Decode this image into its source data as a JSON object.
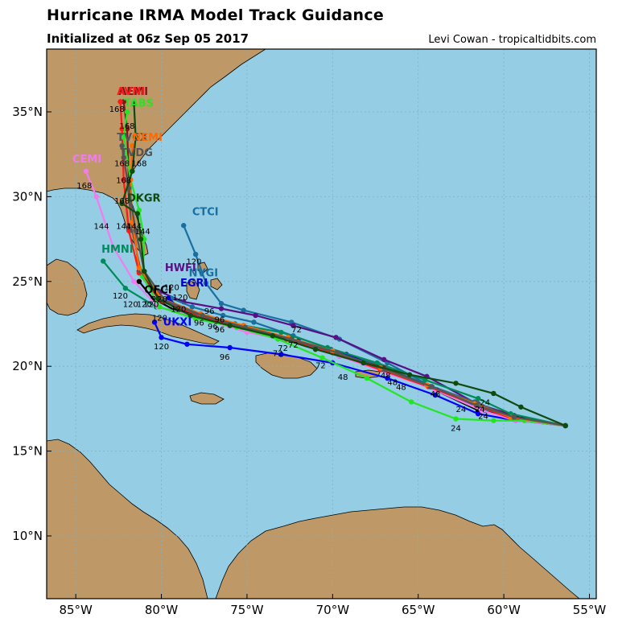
{
  "header": {
    "title": "Hurricane IRMA Model Track Guidance",
    "subtitle": "Initialized at 06z Sep 05 2017",
    "credit": "Levi Cowan - tropicaltidbits.com"
  },
  "map": {
    "extent": {
      "lon_min": -86.7,
      "lon_max": -54.6,
      "lat_min": 6.3,
      "lat_max": 38.7
    },
    "colors": {
      "ocean": "#95cde4",
      "land": "#be9967",
      "grid": "#7fb1c2",
      "border": "#000000"
    },
    "lat_ticks": [
      {
        "v": 35,
        "label": "35°N"
      },
      {
        "v": 30,
        "label": "30°N"
      },
      {
        "v": 25,
        "label": "25°N"
      },
      {
        "v": 20,
        "label": "20°N"
      },
      {
        "v": 15,
        "label": "15°N"
      },
      {
        "v": 10,
        "label": "10°N"
      }
    ],
    "lon_ticks": [
      {
        "v": -85,
        "label": "85°W"
      },
      {
        "v": -80,
        "label": "80°W"
      },
      {
        "v": -75,
        "label": "75°W"
      },
      {
        "v": -70,
        "label": "70°W"
      },
      {
        "v": -65,
        "label": "65°W"
      },
      {
        "v": -60,
        "label": "60°W"
      },
      {
        "v": -55,
        "label": "55°W"
      }
    ]
  },
  "tracks": [
    {
      "name": "CTCI",
      "color": "#1a6fa0",
      "label_at": [
        -78.2,
        28.9
      ],
      "points": [
        [
          -56.4,
          16.5
        ],
        [
          -59.5,
          16.9
        ],
        [
          -61.5,
          17.6
        ],
        [
          -64.2,
          18.8
        ],
        [
          -66.8,
          20.2
        ],
        [
          -69.6,
          21.6
        ],
        [
          -72.4,
          22.6
        ],
        [
          -75.2,
          23.3
        ],
        [
          -76.5,
          23.7
        ],
        [
          -77.4,
          24.9
        ],
        [
          -78.0,
          26.6
        ],
        [
          -78.7,
          28.3
        ]
      ],
      "hours": [
        {
          "p": [
            -64.0,
            18.2
          ],
          "t": "48"
        },
        {
          "p": [
            -78.1,
            26.0
          ],
          "t": "120"
        }
      ]
    },
    {
      "name": "HWFI",
      "color": "#5a0f86",
      "label_at": [
        -79.8,
        25.6
      ],
      "points": [
        [
          -56.4,
          16.5
        ],
        [
          -59.4,
          17.1
        ],
        [
          -61.6,
          17.8
        ],
        [
          -64.5,
          19.4
        ],
        [
          -67.0,
          20.4
        ],
        [
          -69.8,
          21.7
        ],
        [
          -72.3,
          22.4
        ],
        [
          -74.5,
          23.0
        ],
        [
          -76.5,
          23.4
        ],
        [
          -78.7,
          23.8
        ],
        [
          -80.1,
          24.4
        ]
      ],
      "hours": [
        {
          "p": [
            -76.6,
            22.6
          ],
          "t": "96"
        },
        {
          "p": [
            -79.4,
            24.5
          ],
          "t": "120"
        }
      ]
    },
    {
      "name": "NVGI",
      "color": "#1a6fa0",
      "label_at": [
        -78.4,
        25.3
      ],
      "points": [
        [
          -56.4,
          16.5
        ],
        [
          -59.6,
          17.0
        ],
        [
          -61.7,
          17.9
        ],
        [
          -64.7,
          19.0
        ],
        [
          -67.3,
          20.1
        ],
        [
          -70.1,
          21.0
        ],
        [
          -72.3,
          21.8
        ],
        [
          -74.6,
          22.6
        ],
        [
          -76.4,
          23.0
        ],
        [
          -78.2,
          23.5
        ],
        [
          -79.4,
          24.0
        ]
      ],
      "hours": [
        {
          "p": [
            -79.0,
            23.2
          ],
          "t": "120"
        }
      ]
    },
    {
      "name": "EGRI",
      "color": "#0000cc",
      "label_at": [
        -78.9,
        24.7
      ],
      "points": [
        [
          -56.4,
          16.5
        ],
        [
          -59.2,
          16.9
        ],
        [
          -61.3,
          17.6
        ],
        [
          -63.9,
          18.6
        ],
        [
          -66.5,
          19.6
        ],
        [
          -69.2,
          20.7
        ],
        [
          -72.0,
          21.5
        ],
        [
          -74.6,
          22.2
        ],
        [
          -76.7,
          22.7
        ],
        [
          -78.5,
          23.1
        ],
        [
          -79.6,
          24.0
        ]
      ],
      "hours": [
        {
          "p": [
            -78.9,
            23.9
          ],
          "t": "120"
        },
        {
          "p": [
            -76.6,
            22.0
          ],
          "t": "96"
        }
      ]
    },
    {
      "name": "OFCI",
      "color": "#000000",
      "label_at": [
        -81.0,
        24.3
      ],
      "points": [
        [
          -56.4,
          16.5
        ],
        [
          -58.9,
          16.9
        ],
        [
          -61.5,
          17.4
        ],
        [
          -64.0,
          18.6
        ],
        [
          -66.8,
          19.7
        ],
        [
          -69.6,
          20.6
        ],
        [
          -72.4,
          21.6
        ],
        [
          -75.2,
          22.4
        ],
        [
          -77.3,
          22.9
        ],
        [
          -79.2,
          23.3
        ],
        [
          -80.5,
          24.0
        ],
        [
          -81.3,
          25.0
        ]
      ],
      "hours": [
        {
          "p": [
            -80.1,
            22.7
          ],
          "t": "120"
        },
        {
          "p": [
            -77.0,
            22.2
          ],
          "t": "96"
        }
      ]
    },
    {
      "name": "UKXI",
      "color": "#0000ff",
      "label_at": [
        -79.9,
        22.4
      ],
      "points": [
        [
          -56.4,
          16.5
        ],
        [
          -59.3,
          16.8
        ],
        [
          -61.5,
          17.2
        ],
        [
          -64.0,
          18.3
        ],
        [
          -66.8,
          19.3
        ],
        [
          -70.0,
          20.2
        ],
        [
          -73.0,
          20.7
        ],
        [
          -76.0,
          21.1
        ],
        [
          -78.5,
          21.3
        ],
        [
          -80.0,
          21.7
        ],
        [
          -80.4,
          22.6
        ]
      ],
      "hours": [
        {
          "p": [
            -80.0,
            21.0
          ],
          "t": "120"
        },
        {
          "p": [
            -76.3,
            20.4
          ],
          "t": "96"
        },
        {
          "p": [
            -73.2,
            20.6
          ],
          "t": "72"
        },
        {
          "p": [
            -69.4,
            19.2
          ],
          "t": "48"
        }
      ]
    },
    {
      "name": "HMNI",
      "color": "#008c5a",
      "label_at": [
        -83.5,
        26.7
      ],
      "points": [
        [
          -56.4,
          16.5
        ],
        [
          -59.6,
          17.2
        ],
        [
          -61.5,
          18.1
        ],
        [
          -64.6,
          19.2
        ],
        [
          -67.4,
          20.2
        ],
        [
          -70.3,
          21.1
        ],
        [
          -73.0,
          22.0
        ],
        [
          -75.7,
          22.5
        ],
        [
          -78.0,
          23.0
        ],
        [
          -80.3,
          23.5
        ],
        [
          -82.1,
          24.6
        ],
        [
          -83.4,
          26.2
        ]
      ],
      "hours": [
        {
          "p": [
            -82.4,
            24.0
          ],
          "t": "120"
        }
      ]
    },
    {
      "name": "CEMI",
      "color": "#f07cf0",
      "label_at": [
        -85.2,
        32.0
      ],
      "points": [
        [
          -56.4,
          16.5
        ],
        [
          -59.3,
          16.8
        ],
        [
          -61.3,
          17.4
        ],
        [
          -64.0,
          18.6
        ],
        [
          -66.8,
          19.6
        ],
        [
          -69.6,
          20.6
        ],
        [
          -72.4,
          21.5
        ],
        [
          -75.0,
          22.0
        ],
        [
          -77.6,
          22.8
        ],
        [
          -80.2,
          23.5
        ],
        [
          -81.6,
          25.0
        ],
        [
          -82.8,
          27.0
        ],
        [
          -83.8,
          30.0
        ],
        [
          -84.4,
          31.5
        ]
      ],
      "hours": [
        {
          "p": [
            -83.5,
            28.1
          ],
          "t": "144"
        },
        {
          "p": [
            -84.5,
            30.5
          ],
          "t": "168"
        }
      ]
    },
    {
      "name": "AEMI",
      "color": "#7a1a1a",
      "label_at": [
        -82.5,
        36.0
      ],
      "points": [
        [
          -56.4,
          16.5
        ],
        [
          -59.4,
          17.0
        ],
        [
          -61.6,
          17.8
        ],
        [
          -64.3,
          18.8
        ],
        [
          -67.0,
          19.9
        ],
        [
          -69.8,
          20.8
        ],
        [
          -72.5,
          21.6
        ],
        [
          -75.2,
          22.3
        ],
        [
          -77.6,
          22.9
        ],
        [
          -79.9,
          23.8
        ],
        [
          -81.3,
          25.6
        ],
        [
          -81.6,
          28.0
        ],
        [
          -81.9,
          31.0
        ],
        [
          -82.0,
          34.0
        ],
        [
          -82.2,
          35.6
        ]
      ],
      "hours": [
        {
          "p": [
            -82.6,
            35.0
          ],
          "t": "168"
        }
      ]
    },
    {
      "name": "AVNI",
      "color": "#ff1a1a",
      "label_at": [
        -82.6,
        36.0
      ],
      "points": [
        [
          -56.4,
          16.5
        ],
        [
          -59.5,
          16.9
        ],
        [
          -61.6,
          17.7
        ],
        [
          -64.4,
          18.8
        ],
        [
          -67.2,
          19.8
        ],
        [
          -70.0,
          20.8
        ],
        [
          -72.7,
          21.6
        ],
        [
          -75.3,
          22.3
        ],
        [
          -77.8,
          23.0
        ],
        [
          -80.1,
          23.9
        ],
        [
          -81.3,
          25.5
        ],
        [
          -81.9,
          28.0
        ],
        [
          -82.2,
          31.0
        ],
        [
          -82.3,
          34.0
        ],
        [
          -82.4,
          35.6
        ]
      ],
      "hours": [
        {
          "p": [
            -82.0,
            34.0
          ],
          "t": "168"
        }
      ]
    },
    {
      "name": "TABS",
      "color": "#22e622",
      "label_at": [
        -82.2,
        35.3
      ],
      "points": [
        [
          -56.4,
          16.5
        ],
        [
          -58.8,
          16.8
        ],
        [
          -60.6,
          16.8
        ],
        [
          -62.8,
          16.9
        ],
        [
          -65.4,
          17.9
        ],
        [
          -68.0,
          19.3
        ],
        [
          -70.6,
          20.5
        ],
        [
          -73.2,
          21.6
        ],
        [
          -75.6,
          22.3
        ],
        [
          -78.0,
          22.8
        ],
        [
          -80.1,
          23.5
        ],
        [
          -81.1,
          25.3
        ],
        [
          -81.0,
          27.5
        ],
        [
          -81.3,
          29.2
        ],
        [
          -81.8,
          31.0
        ],
        [
          -82.2,
          33.5
        ],
        [
          -82.0,
          35.0
        ]
      ],
      "hours": [
        {
          "p": [
            -62.8,
            16.2
          ],
          "t": "24"
        },
        {
          "p": [
            -62.5,
            17.3
          ],
          "t": "24"
        }
      ]
    },
    {
      "name": "TVCX",
      "color": "#555555",
      "label_at": [
        -82.6,
        33.3
      ],
      "points": [
        [
          -56.4,
          16.5
        ],
        [
          -59.5,
          17.0
        ],
        [
          -61.5,
          17.8
        ],
        [
          -64.3,
          18.8
        ],
        [
          -67.0,
          19.8
        ],
        [
          -69.8,
          20.8
        ],
        [
          -72.5,
          21.6
        ],
        [
          -75.2,
          22.3
        ],
        [
          -77.7,
          23.0
        ],
        [
          -79.9,
          23.9
        ],
        [
          -81.2,
          25.6
        ],
        [
          -81.7,
          28.0
        ],
        [
          -82.0,
          31.0
        ],
        [
          -82.3,
          33.0
        ]
      ],
      "hours": [
        {
          "p": [
            -82.3,
            31.8
          ],
          "t": "168"
        }
      ]
    },
    {
      "name": "NEMI",
      "color": "#ff6a00",
      "label_at": [
        -81.7,
        33.3
      ],
      "points": [
        [
          -56.4,
          16.5
        ],
        [
          -59.6,
          17.0
        ],
        [
          -61.7,
          17.8
        ],
        [
          -64.5,
          18.9
        ],
        [
          -67.2,
          19.9
        ],
        [
          -70.0,
          20.9
        ],
        [
          -72.6,
          21.7
        ],
        [
          -75.2,
          22.4
        ],
        [
          -77.7,
          23.1
        ],
        [
          -80.0,
          24.0
        ],
        [
          -81.3,
          25.8
        ],
        [
          -81.7,
          28.5
        ],
        [
          -81.8,
          31.0
        ],
        [
          -81.7,
          33.0
        ]
      ],
      "hours": [
        {
          "p": [
            -81.3,
            31.8
          ],
          "t": "168"
        }
      ]
    },
    {
      "name": "TVDG",
      "color": "#555555",
      "label_at": [
        -82.4,
        32.4
      ],
      "points": [
        [
          -56.4,
          16.5
        ],
        [
          -59.4,
          17.0
        ],
        [
          -61.6,
          17.7
        ],
        [
          -64.2,
          18.8
        ],
        [
          -66.9,
          19.8
        ],
        [
          -69.7,
          20.8
        ],
        [
          -72.4,
          21.6
        ],
        [
          -75.1,
          22.3
        ],
        [
          -77.6,
          23.0
        ],
        [
          -79.8,
          23.9
        ],
        [
          -81.0,
          25.6
        ],
        [
          -81.5,
          28.0
        ],
        [
          -81.9,
          30.5
        ],
        [
          -82.2,
          32.3
        ]
      ],
      "hours": [
        {
          "p": [
            -82.2,
            30.8
          ],
          "t": "168"
        }
      ]
    },
    {
      "name": "DKGR",
      "color": "#0f4a0f",
      "label_at": [
        -82.0,
        29.7
      ],
      "points": [
        [
          -56.4,
          16.5
        ],
        [
          -59.0,
          17.6
        ],
        [
          -60.6,
          18.4
        ],
        [
          -62.8,
          19.0
        ],
        [
          -65.5,
          19.5
        ],
        [
          -68.2,
          20.2
        ],
        [
          -71.0,
          21.0
        ],
        [
          -73.5,
          21.8
        ],
        [
          -76.0,
          22.4
        ],
        [
          -78.3,
          23.0
        ],
        [
          -80.2,
          24.0
        ],
        [
          -81.0,
          25.6
        ],
        [
          -81.2,
          27.5
        ],
        [
          -81.4,
          29.0
        ],
        [
          -82.3,
          29.6
        ],
        [
          -81.7,
          31.5
        ],
        [
          -81.5,
          33.5
        ],
        [
          -81.6,
          35.5
        ]
      ],
      "hours": [
        {
          "p": [
            -82.2,
            28.1
          ],
          "t": "144"
        },
        {
          "p": [
            -81.6,
            28.1
          ],
          "t": "144"
        }
      ]
    }
  ],
  "hour_labels": [
    {
      "p": [
        -61.2,
        16.9
      ],
      "t": "24"
    },
    {
      "p": [
        -61.4,
        17.3
      ],
      "t": "24"
    },
    {
      "p": [
        -61.1,
        17.7
      ],
      "t": "24"
    },
    {
      "p": [
        -66.9,
        19.3
      ],
      "t": "48"
    },
    {
      "p": [
        -66.5,
        18.9
      ],
      "t": "48"
    },
    {
      "p": [
        -66.0,
        18.6
      ],
      "t": "48"
    },
    {
      "p": [
        -70.7,
        19.9
      ],
      "t": "72"
    },
    {
      "p": [
        -72.3,
        21.1
      ],
      "t": "72"
    },
    {
      "p": [
        -72.9,
        20.9
      ],
      "t": "72"
    },
    {
      "p": [
        -77.8,
        22.4
      ],
      "t": "96"
    },
    {
      "p": [
        -80.6,
        23.5
      ],
      "t": "120"
    },
    {
      "p": [
        -81.8,
        23.5
      ],
      "t": "120"
    },
    {
      "p": [
        -77.2,
        23.1
      ],
      "t": "96"
    },
    {
      "p": [
        -81.1,
        27.8
      ],
      "t": "144"
    },
    {
      "p": [
        -82.3,
        29.6
      ],
      "t": "168"
    },
    {
      "p": [
        -81.0,
        23.5
      ],
      "t": "120"
    },
    {
      "p": [
        -80.1,
        23.8
      ],
      "t": "120"
    },
    {
      "p": [
        -72.1,
        22.0
      ],
      "t": "72"
    }
  ]
}
